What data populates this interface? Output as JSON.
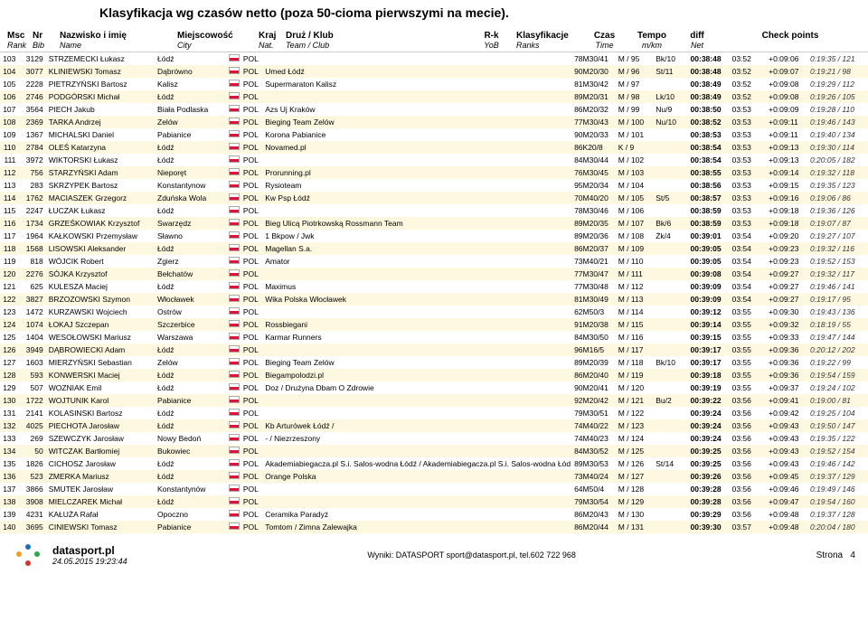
{
  "title": "Klasyfikacja wg czasów netto (poza 50-cioma pierwszymi na mecie).",
  "headers": {
    "msc": "Msc",
    "rank": "Rank",
    "nr": "Nr",
    "bib": "Bib",
    "name1": "Nazwisko i imię",
    "name2": "Name",
    "city1": "Miejscowość",
    "city2": "City",
    "kraj1": "Kraj",
    "kraj2": "Nat.",
    "team1": "Druż / Klub",
    "team2": "Team / Club",
    "rk1": "R-k",
    "rk2": "YoB",
    "ranks1": "Klasyfikacje",
    "ranks2": "Ranks",
    "czas1": "Czas",
    "czas2": "Time",
    "tempo1": "Tempo",
    "tempo2": "m/km",
    "diff1": "diff",
    "diff2": "Net",
    "check": "Check points"
  },
  "rows": [
    {
      "pos": "103",
      "bib": "3129",
      "name": "STRZEMECKI Łukasz",
      "city": "Łódź",
      "kraj": "POL",
      "team": "",
      "rk": "78M30/41",
      "ranks": "M / 95",
      "extra": "Bk/10",
      "time": "00:38:48",
      "tempo": "03:52",
      "diff": "+0:09:06",
      "check": "0:19:35 / 121"
    },
    {
      "pos": "104",
      "bib": "3077",
      "name": "KLINIEWSKI Tomasz",
      "city": "Dąbrówno",
      "kraj": "POL",
      "team": "Umed Łódź",
      "rk": "90M20/30",
      "ranks": "M / 96",
      "extra": "St/11",
      "time": "00:38:48",
      "tempo": "03:52",
      "diff": "+0:09:07",
      "check": "0:19:21 / 98"
    },
    {
      "pos": "105",
      "bib": "2228",
      "name": "PIETRZYŃSKI Bartosz",
      "city": "Kalisz",
      "kraj": "POL",
      "team": "Supermaraton Kalisz",
      "rk": "81M30/42",
      "ranks": "M / 97",
      "extra": "",
      "time": "00:38:49",
      "tempo": "03:52",
      "diff": "+0:09:08",
      "check": "0:19:29 / 112"
    },
    {
      "pos": "106",
      "bib": "2746",
      "name": "PODGÓRSKI Michał",
      "city": "Łódź",
      "kraj": "POL",
      "team": "",
      "rk": "89M20/31",
      "ranks": "M / 98",
      "extra": "Lk/10",
      "time": "00:38:49",
      "tempo": "03:52",
      "diff": "+0:09:08",
      "check": "0:19:26 / 105"
    },
    {
      "pos": "107",
      "bib": "3564",
      "name": "PIECH Jakub",
      "city": "Biała Podlaska",
      "kraj": "POL",
      "team": "Azs Uj Kraków",
      "rk": "86M20/32",
      "ranks": "M / 99",
      "extra": "Nu/9",
      "time": "00:38:50",
      "tempo": "03:53",
      "diff": "+0:09:09",
      "check": "0:19:28 / 110"
    },
    {
      "pos": "108",
      "bib": "2369",
      "name": "TARKA Andrzej",
      "city": "Zelów",
      "kraj": "POL",
      "team": "Bieging Team Zelów",
      "rk": "77M30/43",
      "ranks": "M / 100",
      "extra": "Nu/10",
      "time": "00:38:52",
      "tempo": "03:53",
      "diff": "+0:09:11",
      "check": "0:19:46 / 143"
    },
    {
      "pos": "109",
      "bib": "1367",
      "name": "MICHALSKI Daniel",
      "city": "Pabianice",
      "kraj": "POL",
      "team": "Korona Pabianice",
      "rk": "90M20/33",
      "ranks": "M / 101",
      "extra": "",
      "time": "00:38:53",
      "tempo": "03:53",
      "diff": "+0:09:11",
      "check": "0:19:40 / 134"
    },
    {
      "pos": "110",
      "bib": "2784",
      "name": "OLEŚ Katarzyna",
      "city": "Łódź",
      "kraj": "POL",
      "team": "Novamed.pl",
      "rk": "86K20/8",
      "ranks": "K / 9",
      "extra": "",
      "time": "00:38:54",
      "tempo": "03:53",
      "diff": "+0:09:13",
      "check": "0:19:30 / 114"
    },
    {
      "pos": "111",
      "bib": "3972",
      "name": "WIKTORSKI Łukasz",
      "city": "Łódź",
      "kraj": "POL",
      "team": "",
      "rk": "84M30/44",
      "ranks": "M / 102",
      "extra": "",
      "time": "00:38:54",
      "tempo": "03:53",
      "diff": "+0:09:13",
      "check": "0:20:05 / 182"
    },
    {
      "pos": "112",
      "bib": "756",
      "name": "STARZYŃSKI Adam",
      "city": "Nieporęt",
      "kraj": "POL",
      "team": "Prorunning.pl",
      "rk": "76M30/45",
      "ranks": "M / 103",
      "extra": "",
      "time": "00:38:55",
      "tempo": "03:53",
      "diff": "+0:09:14",
      "check": "0:19:32 / 118"
    },
    {
      "pos": "113",
      "bib": "283",
      "name": "SKRZYPEK Bartosz",
      "city": "Konstantynow",
      "kraj": "POL",
      "team": "Rysioteam",
      "rk": "95M20/34",
      "ranks": "M / 104",
      "extra": "",
      "time": "00:38:56",
      "tempo": "03:53",
      "diff": "+0:09:15",
      "check": "0:19:35 / 123"
    },
    {
      "pos": "114",
      "bib": "1762",
      "name": "MACIASZEK Grzegorz",
      "city": "Zduńska Wola",
      "kraj": "POL",
      "team": "Kw Psp Łódź",
      "rk": "70M40/20",
      "ranks": "M / 105",
      "extra": "St/5",
      "time": "00:38:57",
      "tempo": "03:53",
      "diff": "+0:09:16",
      "check": "0:19:06 / 86"
    },
    {
      "pos": "115",
      "bib": "2247",
      "name": "ŁUCZAK Łukasz",
      "city": "Łódź",
      "kraj": "POL",
      "team": "",
      "rk": "78M30/46",
      "ranks": "M / 106",
      "extra": "",
      "time": "00:38:59",
      "tempo": "03:53",
      "diff": "+0:09:18",
      "check": "0:19:36 / 126"
    },
    {
      "pos": "116",
      "bib": "1734",
      "name": "GRZEŚKOWIAK Krzysztof",
      "city": "Swarzędz",
      "kraj": "POL",
      "team": "Bieg Ulicą Piotrkowską Rossmann Team",
      "rk": "89M20/35",
      "ranks": "M / 107",
      "extra": "Bk/6",
      "time": "00:38:59",
      "tempo": "03:53",
      "diff": "+0:09:18",
      "check": "0:19:07 / 87"
    },
    {
      "pos": "117",
      "bib": "1964",
      "name": "KAŁKOWSKI Przemysław",
      "city": "Sławno",
      "kraj": "POL",
      "team": "1 Bkpow / Jwk",
      "rk": "89M20/36",
      "ranks": "M / 108",
      "extra": "Żk/4",
      "time": "00:39:01",
      "tempo": "03:54",
      "diff": "+0:09:20",
      "check": "0:19:27 / 107"
    },
    {
      "pos": "118",
      "bib": "1568",
      "name": "LISOWSKI Aleksander",
      "city": "Łódź",
      "kraj": "POL",
      "team": "Magellan S.a.",
      "rk": "86M20/37",
      "ranks": "M / 109",
      "extra": "",
      "time": "00:39:05",
      "tempo": "03:54",
      "diff": "+0:09:23",
      "check": "0:19:32 / 116"
    },
    {
      "pos": "119",
      "bib": "818",
      "name": "WÓJCIK Robert",
      "city": "Zgierz",
      "kraj": "POL",
      "team": "Amator",
      "rk": "73M40/21",
      "ranks": "M / 110",
      "extra": "",
      "time": "00:39:05",
      "tempo": "03:54",
      "diff": "+0:09:23",
      "check": "0:19:52 / 153"
    },
    {
      "pos": "120",
      "bib": "2276",
      "name": "SÓJKA Krzysztof",
      "city": "Bełchatów",
      "kraj": "POL",
      "team": "",
      "rk": "77M30/47",
      "ranks": "M / 111",
      "extra": "",
      "time": "00:39:08",
      "tempo": "03:54",
      "diff": "+0:09:27",
      "check": "0:19:32 / 117"
    },
    {
      "pos": "121",
      "bib": "625",
      "name": "KULESZA Maciej",
      "city": "Łódź",
      "kraj": "POL",
      "team": "Maximus",
      "rk": "77M30/48",
      "ranks": "M / 112",
      "extra": "",
      "time": "00:39:09",
      "tempo": "03:54",
      "diff": "+0:09:27",
      "check": "0:19:46 / 141"
    },
    {
      "pos": "122",
      "bib": "3827",
      "name": "BRZOZOWSKI Szymon",
      "city": "Włocławek",
      "kraj": "POL",
      "team": "Wika Polska Włocławek",
      "rk": "81M30/49",
      "ranks": "M / 113",
      "extra": "",
      "time": "00:39:09",
      "tempo": "03:54",
      "diff": "+0:09:27",
      "check": "0:19:17 / 95"
    },
    {
      "pos": "123",
      "bib": "1472",
      "name": "KURZAWSKI Wojciech",
      "city": "Ostrów",
      "kraj": "POL",
      "team": "",
      "rk": "62M50/3",
      "ranks": "M / 114",
      "extra": "",
      "time": "00:39:12",
      "tempo": "03:55",
      "diff": "+0:09:30",
      "check": "0:19:43 / 136"
    },
    {
      "pos": "124",
      "bib": "1074",
      "name": "ŁOKAJ Szczepan",
      "city": "Szczerbice",
      "kraj": "POL",
      "team": "Rossbiegani",
      "rk": "91M20/38",
      "ranks": "M / 115",
      "extra": "",
      "time": "00:39:14",
      "tempo": "03:55",
      "diff": "+0:09:32",
      "check": "0:18:19 / 55"
    },
    {
      "pos": "125",
      "bib": "1404",
      "name": "WESOŁOWSKI Mariusz",
      "city": "Warszawa",
      "kraj": "POL",
      "team": "Karmar Runners",
      "rk": "84M30/50",
      "ranks": "M / 116",
      "extra": "",
      "time": "00:39:15",
      "tempo": "03:55",
      "diff": "+0:09:33",
      "check": "0:19:47 / 144"
    },
    {
      "pos": "126",
      "bib": "3949",
      "name": "DĄBROWIECKI Adam",
      "city": "Łódź",
      "kraj": "POL",
      "team": "",
      "rk": "96M16/5",
      "ranks": "M / 117",
      "extra": "",
      "time": "00:39:17",
      "tempo": "03:55",
      "diff": "+0:09:36",
      "check": "0:20:12 / 202"
    },
    {
      "pos": "127",
      "bib": "1603",
      "name": "MIERZYŃSKI Sebastian",
      "city": "Zelów",
      "kraj": "POL",
      "team": "Bieging Team Zelów",
      "rk": "89M20/39",
      "ranks": "M / 118",
      "extra": "Bk/10",
      "time": "00:39:17",
      "tempo": "03:55",
      "diff": "+0:09:36",
      "check": "0:19:22 / 99"
    },
    {
      "pos": "128",
      "bib": "593",
      "name": "KONWERSKI Maciej",
      "city": "Łódź",
      "kraj": "POL",
      "team": "Biegampolodzi.pl",
      "rk": "86M20/40",
      "ranks": "M / 119",
      "extra": "",
      "time": "00:39:18",
      "tempo": "03:55",
      "diff": "+0:09:36",
      "check": "0:19:54 / 159"
    },
    {
      "pos": "129",
      "bib": "507",
      "name": "WOZNIAK Emil",
      "city": "Łódź",
      "kraj": "POL",
      "team": "Doz / Drużyna Dbam O Zdrowie",
      "rk": "90M20/41",
      "ranks": "M / 120",
      "extra": "",
      "time": "00:39:19",
      "tempo": "03:55",
      "diff": "+0:09:37",
      "check": "0:19:24 / 102"
    },
    {
      "pos": "130",
      "bib": "1722",
      "name": "WOJTUNIK Karol",
      "city": "Pabianice",
      "kraj": "POL",
      "team": "",
      "rk": "92M20/42",
      "ranks": "M / 121",
      "extra": "Bu/2",
      "time": "00:39:22",
      "tempo": "03:56",
      "diff": "+0:09:41",
      "check": "0:19:00 / 81"
    },
    {
      "pos": "131",
      "bib": "2141",
      "name": "KOLASINSKI Bartosz",
      "city": "Łódź",
      "kraj": "POL",
      "team": "",
      "rk": "79M30/51",
      "ranks": "M / 122",
      "extra": "",
      "time": "00:39:24",
      "tempo": "03:56",
      "diff": "+0:09:42",
      "check": "0:19:25 / 104"
    },
    {
      "pos": "132",
      "bib": "4025",
      "name": "PIECHOTA Jarosław",
      "city": "Łódź",
      "kraj": "POL",
      "team": "Kb Arturówek Łódź /",
      "rk": "74M40/22",
      "ranks": "M / 123",
      "extra": "",
      "time": "00:39:24",
      "tempo": "03:56",
      "diff": "+0:09:43",
      "check": "0:19:50 / 147"
    },
    {
      "pos": "133",
      "bib": "269",
      "name": "SZEWCZYK Jarosław",
      "city": "Nowy Bedoń",
      "kraj": "POL",
      "team": "- / Niezrzeszony",
      "rk": "74M40/23",
      "ranks": "M / 124",
      "extra": "",
      "time": "00:39:24",
      "tempo": "03:56",
      "diff": "+0:09:43",
      "check": "0:19:35 / 122"
    },
    {
      "pos": "134",
      "bib": "50",
      "name": "WITCZAK Bartłomiej",
      "city": "Bukowiec",
      "kraj": "POL",
      "team": "",
      "rk": "84M30/52",
      "ranks": "M / 125",
      "extra": "",
      "time": "00:39:25",
      "tempo": "03:56",
      "diff": "+0:09:43",
      "check": "0:19:52 / 154"
    },
    {
      "pos": "135",
      "bib": "1826",
      "name": "CICHOSZ Jarosław",
      "city": "Łódź",
      "kraj": "POL",
      "team": "Akademiabiegacza.pl S.i. Salos-wodna Łódź / Akademiabiegacza.pl S.i. Salos-wodna Łód",
      "rk": "89M30/53",
      "ranks": "M / 126",
      "extra": "St/14",
      "time": "00:39:25",
      "tempo": "03:56",
      "diff": "+0:09:43",
      "check": "0:19:46 / 142"
    },
    {
      "pos": "136",
      "bib": "523",
      "name": "ZMERKA Mariusz",
      "city": "Łódź",
      "kraj": "POL",
      "team": "Orange Polska",
      "rk": "73M40/24",
      "ranks": "M / 127",
      "extra": "",
      "time": "00:39:26",
      "tempo": "03:56",
      "diff": "+0:09:45",
      "check": "0:19:37 / 129"
    },
    {
      "pos": "137",
      "bib": "3866",
      "name": "SMUTEK Jarosław",
      "city": "Konstantynów",
      "kraj": "POL",
      "team": "",
      "rk": "64M50/4",
      "ranks": "M / 128",
      "extra": "",
      "time": "00:39:28",
      "tempo": "03:56",
      "diff": "+0:09:46",
      "check": "0:19:49 / 146"
    },
    {
      "pos": "138",
      "bib": "3908",
      "name": "MIELCZAREK Michał",
      "city": "Łódź",
      "kraj": "POL",
      "team": "",
      "rk": "79M30/54",
      "ranks": "M / 129",
      "extra": "",
      "time": "00:39:28",
      "tempo": "03:56",
      "diff": "+0:09:47",
      "check": "0:19:54 / 160"
    },
    {
      "pos": "139",
      "bib": "4231",
      "name": "KAŁUŻA Rafał",
      "city": "Opoczno",
      "kraj": "POL",
      "team": "Ceramika Paradyż",
      "rk": "86M20/43",
      "ranks": "M / 130",
      "extra": "",
      "time": "00:39:29",
      "tempo": "03:56",
      "diff": "+0:09:48",
      "check": "0:19:37 / 128"
    },
    {
      "pos": "140",
      "bib": "3695",
      "name": "CINIEWSKI Tomasz",
      "city": "Pabianice",
      "kraj": "POL",
      "team": "Tomtom / Zimna Zalewajka",
      "rk": "86M20/44",
      "ranks": "M / 131",
      "extra": "",
      "time": "00:39:30",
      "tempo": "03:57",
      "diff": "+0:09:48",
      "check": "0:20:04 / 180"
    }
  ],
  "footer": {
    "timestamp": "24.05.2015 19:23:44",
    "center": "Wyniki: DATASPORT sport@datasport.pl, tel.602 722 968",
    "page_label": "Strona",
    "page_num": "4",
    "logo_text": "datasport.pl",
    "logo_colors": [
      "#1e6fb8",
      "#f0a020",
      "#2aa84a",
      "#d4342a"
    ]
  }
}
